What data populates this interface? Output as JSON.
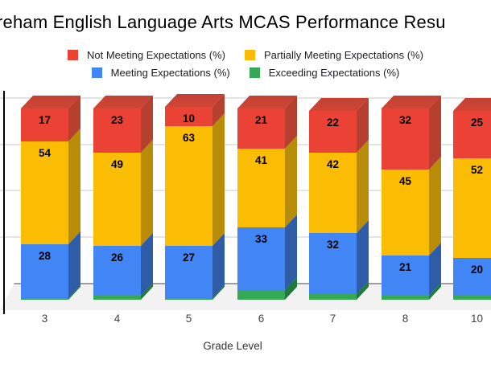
{
  "title": {
    "visible_text": "reham English Language Arts MCAS Performance Resu"
  },
  "legend": {
    "rows": [
      [
        {
          "label": "Not Meeting Expectations (%)",
          "color": "#EA4335"
        },
        {
          "label": "Partially Meeting Expectations (%)",
          "color": "#FBBC04"
        }
      ],
      [
        {
          "label": "Meeting Expectations (%)",
          "color": "#4285F4"
        },
        {
          "label": "Exceeding Expectations (%)",
          "color": "#34A853"
        }
      ]
    ]
  },
  "x_axis": {
    "title": "Grade Level",
    "tick_labels": [
      "3",
      "4",
      "5",
      "6",
      "7",
      "8",
      "10"
    ]
  },
  "chart_data": {
    "type": "bar",
    "variant": "stacked-3d-column",
    "categories": [
      "3",
      "4",
      "5",
      "6",
      "7",
      "8",
      "10"
    ],
    "series": [
      {
        "name": "Exceeding Expectations (%)",
        "color": "#34A853",
        "side_color": "#1F7A3C",
        "values": [
          1,
          2,
          1,
          5,
          3,
          2,
          2
        ],
        "data_labels_visible": false,
        "values_estimated": true
      },
      {
        "name": "Meeting Expectations (%)",
        "color": "#4285F4",
        "side_color": "#2E5CA6",
        "values": [
          28,
          26,
          27,
          33,
          32,
          21,
          20
        ],
        "data_labels_visible": true
      },
      {
        "name": "Partially Meeting Expectations (%)",
        "color": "#FBBC04",
        "side_color": "#B88C09",
        "values": [
          54,
          49,
          63,
          41,
          42,
          45,
          52
        ],
        "data_labels_visible": true
      },
      {
        "name": "Not Meeting Expectations (%)",
        "color": "#EA4335",
        "side_color": "#B6402F",
        "top_color": "#D14534",
        "values": [
          17,
          23,
          10,
          21,
          22,
          32,
          25
        ],
        "data_labels_visible": true
      }
    ],
    "stack_order": "bottom-to-top as listed",
    "xlabel": "Grade Level",
    "ylabel": "",
    "y_axis_labels_visible": false,
    "gridlines": true,
    "legend_position": "top"
  }
}
